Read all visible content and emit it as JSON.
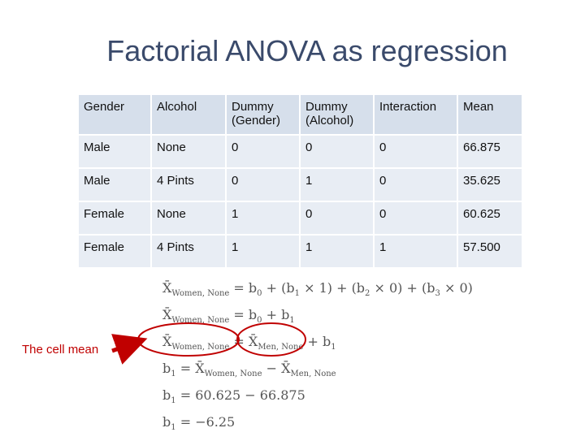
{
  "title": "Factorial ANOVA as regression",
  "table": {
    "header": [
      "Gender",
      "Alcohol",
      "Dummy (Gender)",
      "Dummy (Alcohol)",
      "Interaction",
      "Mean"
    ],
    "rows": [
      [
        "Male",
        "None",
        "0",
        "0",
        "0",
        "66.875"
      ],
      [
        "Male",
        "4 Pints",
        "0",
        "1",
        "0",
        "35.625"
      ],
      [
        "Female",
        "None",
        "1",
        "0",
        "0",
        "60.625"
      ],
      [
        "Female",
        "4 Pints",
        "1",
        "1",
        "1",
        "57.500"
      ]
    ]
  },
  "annotation": "The cell mean",
  "equations": [
    [
      {
        "text": "X̄",
        "sub": "Women, None"
      },
      {
        "text": " = b"
      },
      {
        "text": "",
        "sub": "0"
      },
      {
        "text": " + (b"
      },
      {
        "text": "",
        "sub": "1"
      },
      {
        "text": " × 1) + (b"
      },
      {
        "text": "",
        "sub": "2"
      },
      {
        "text": " × 0) + (b"
      },
      {
        "text": "",
        "sub": "3"
      },
      {
        "text": " × 0)"
      }
    ],
    [
      {
        "text": "X̄",
        "sub": "Women, None"
      },
      {
        "text": " = b"
      },
      {
        "text": "",
        "sub": "0"
      },
      {
        "text": " + b"
      },
      {
        "text": "",
        "sub": "1"
      }
    ],
    [
      {
        "text": "X̄",
        "sub": "Women, None"
      },
      {
        "text": " = "
      },
      {
        "text": "X̄",
        "sub": "Men, None"
      },
      {
        "text": " + b"
      },
      {
        "text": "",
        "sub": "1"
      }
    ],
    [
      {
        "text": "b",
        "sub": "1"
      },
      {
        "text": " = "
      },
      {
        "text": "X̄",
        "sub": "Women, None"
      },
      {
        "text": " − "
      },
      {
        "text": "X̄",
        "sub": "Men, None"
      }
    ],
    [
      {
        "text": "b",
        "sub": "1"
      },
      {
        "text": " = 60.625 − 66.875"
      }
    ],
    [
      {
        "text": "b",
        "sub": "1"
      },
      {
        "text": " = −6.25"
      }
    ]
  ]
}
